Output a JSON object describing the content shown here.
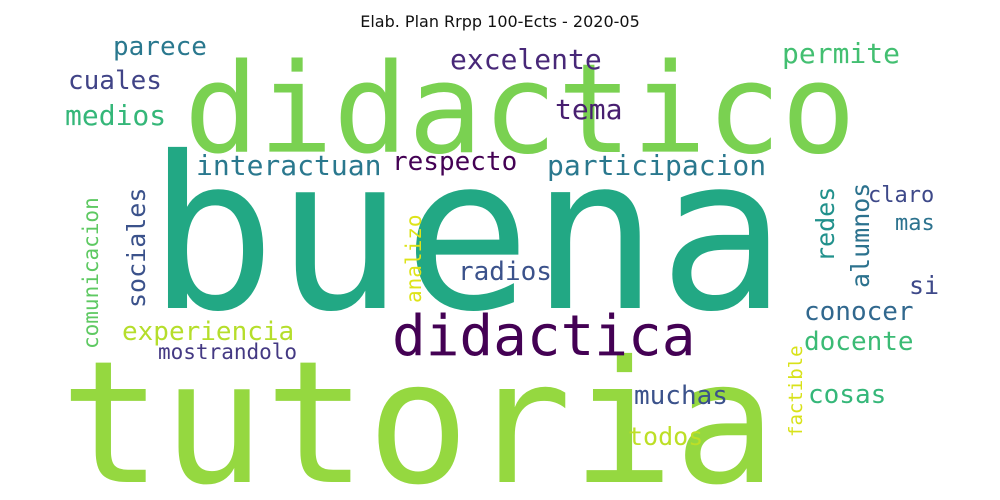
{
  "title": "Elab. Plan Rrpp  100-Ects - 2020-05",
  "words": [
    {
      "text": "didactico",
      "color": "#7ad151"
    },
    {
      "text": "buena",
      "color": "#22a884"
    },
    {
      "text": "tutoria",
      "color": "#95d840"
    },
    {
      "text": "didactica",
      "color": "#440154"
    },
    {
      "text": "parece",
      "color": "#2a788e"
    },
    {
      "text": "cuales",
      "color": "#414487"
    },
    {
      "text": "medios",
      "color": "#35b779"
    },
    {
      "text": "excelente",
      "color": "#482878"
    },
    {
      "text": "permite",
      "color": "#43bf71"
    },
    {
      "text": "tema",
      "color": "#481f70"
    },
    {
      "text": "interactuan",
      "color": "#2a788e"
    },
    {
      "text": "respecto",
      "color": "#440154"
    },
    {
      "text": "participacion",
      "color": "#2a788e"
    },
    {
      "text": "comunicacion",
      "color": "#5ec962"
    },
    {
      "text": "sociales",
      "color": "#3b528b"
    },
    {
      "text": "analizo",
      "color": "#dde318"
    },
    {
      "text": "redes",
      "color": "#21918c"
    },
    {
      "text": "alumnos",
      "color": "#2c728e"
    },
    {
      "text": "claro",
      "color": "#3e4989"
    },
    {
      "text": "mas",
      "color": "#2c728e"
    },
    {
      "text": "radios",
      "color": "#3b528b"
    },
    {
      "text": "si",
      "color": "#3e4989"
    },
    {
      "text": "conocer",
      "color": "#31688e"
    },
    {
      "text": "experiencia",
      "color": "#b5de2b"
    },
    {
      "text": "docente",
      "color": "#3bbb75"
    },
    {
      "text": "mostrandolo",
      "color": "#443983"
    },
    {
      "text": "factible",
      "color": "#d8e219"
    },
    {
      "text": "muchas",
      "color": "#3b528b"
    },
    {
      "text": "cosas",
      "color": "#35b779"
    },
    {
      "text": "todos",
      "color": "#bddf26"
    }
  ]
}
